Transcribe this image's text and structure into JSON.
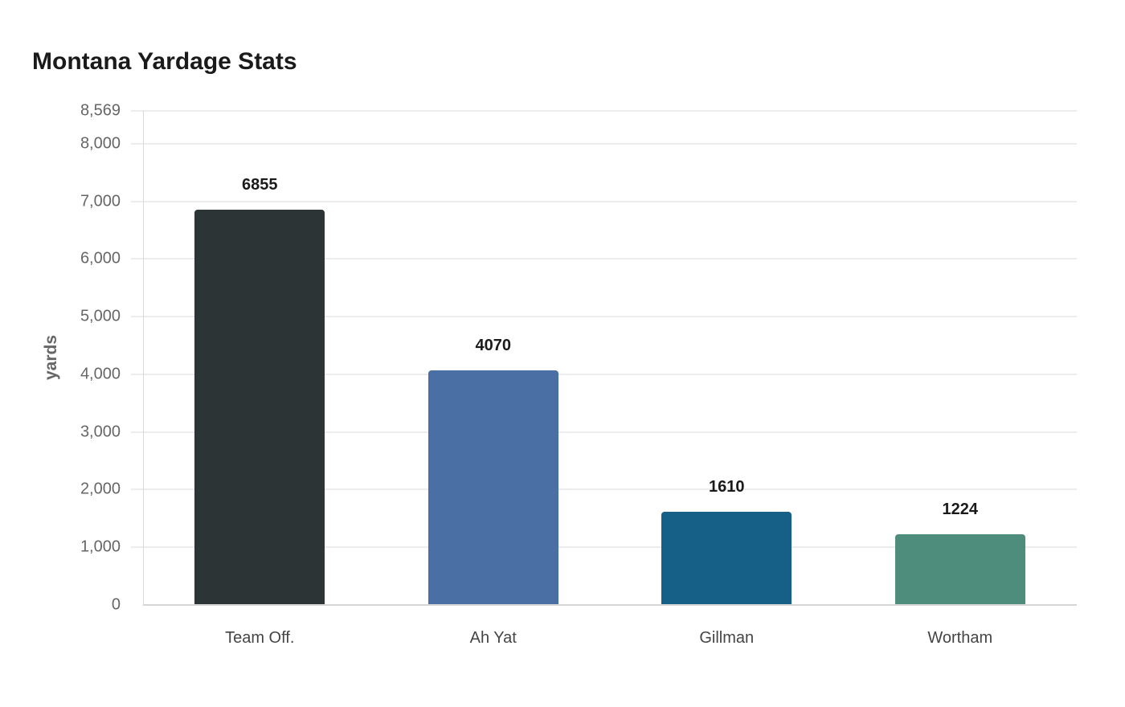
{
  "chart_data": {
    "type": "bar",
    "title": "Montana Yardage Stats",
    "xlabel": "",
    "ylabel": "yards",
    "categories": [
      "Team Off.",
      "Ah Yat",
      "Gillman",
      "Wortham"
    ],
    "values": [
      6855,
      4070,
      1610,
      1224
    ],
    "colors": [
      "#2d3436",
      "#4a6fa5",
      "#166088",
      "#4e8d7c"
    ],
    "ylim": [
      0,
      8569
    ],
    "yticks": [
      0,
      1000,
      2000,
      3000,
      4000,
      5000,
      6000,
      7000,
      8000,
      8569
    ],
    "ytick_labels": [
      "0",
      "1,000",
      "2,000",
      "3,000",
      "4,000",
      "5,000",
      "6,000",
      "7,000",
      "8,000",
      "8,569"
    ],
    "grid": true,
    "legend": "none",
    "data_labels": true
  }
}
